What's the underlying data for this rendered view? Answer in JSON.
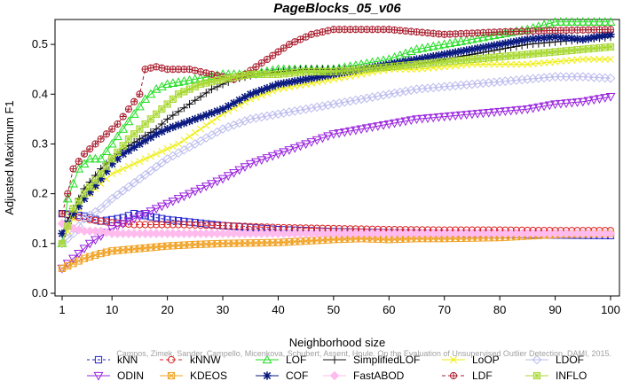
{
  "chart_data": {
    "type": "line",
    "title": "PageBlocks_05_v06",
    "xlabel": "Neighborhood size",
    "ylabel": "Adjusted Maximum F1",
    "xlim": [
      1,
      100
    ],
    "ylim": [
      0,
      0.55
    ],
    "x_ticks": [
      "1",
      "10",
      "20",
      "30",
      "40",
      "50",
      "60",
      "70",
      "80",
      "90",
      "100"
    ],
    "y_ticks": [
      "0.0",
      "0.1",
      "0.2",
      "0.3",
      "0.4",
      "0.5"
    ],
    "grid": false,
    "legend_position": "bottom",
    "watermark": "Campos, Zimek, Sander, Campello, Micenkova, Schubert, Assent, Houle. On the Evaluation of Unsupervised Outlier Detection. DAMI, 2015.",
    "series": [
      {
        "name": "kNN",
        "color": "#2222cc",
        "marker": "square",
        "dash": "3,3",
        "points": [
          [
            1,
            0.16
          ],
          [
            3,
            0.158
          ],
          [
            5,
            0.155
          ],
          [
            8,
            0.145
          ],
          [
            10,
            0.148
          ],
          [
            12,
            0.152
          ],
          [
            14,
            0.16
          ],
          [
            16,
            0.156
          ],
          [
            18,
            0.152
          ],
          [
            20,
            0.148
          ],
          [
            25,
            0.142
          ],
          [
            30,
            0.136
          ],
          [
            40,
            0.128
          ],
          [
            50,
            0.124
          ],
          [
            60,
            0.122
          ],
          [
            70,
            0.12
          ],
          [
            80,
            0.118
          ],
          [
            90,
            0.117
          ],
          [
            100,
            0.116
          ]
        ]
      },
      {
        "name": "kNNW",
        "color": "#dd2222",
        "marker": "circle",
        "dash": "4,3",
        "points": [
          [
            1,
            0.16
          ],
          [
            3,
            0.155
          ],
          [
            6,
            0.148
          ],
          [
            10,
            0.142
          ],
          [
            14,
            0.138
          ],
          [
            18,
            0.138
          ],
          [
            22,
            0.138
          ],
          [
            30,
            0.136
          ],
          [
            40,
            0.132
          ],
          [
            50,
            0.13
          ],
          [
            60,
            0.128
          ],
          [
            70,
            0.127
          ],
          [
            80,
            0.127
          ],
          [
            90,
            0.126
          ],
          [
            100,
            0.126
          ]
        ]
      },
      {
        "name": "LOF",
        "color": "#22dd22",
        "marker": "triangle",
        "dash": "",
        "points": [
          [
            1,
            0.1
          ],
          [
            2,
            0.19
          ],
          [
            4,
            0.25
          ],
          [
            6,
            0.27
          ],
          [
            8,
            0.27
          ],
          [
            10,
            0.3
          ],
          [
            12,
            0.33
          ],
          [
            14,
            0.36
          ],
          [
            16,
            0.39
          ],
          [
            18,
            0.41
          ],
          [
            20,
            0.42
          ],
          [
            25,
            0.43
          ],
          [
            30,
            0.44
          ],
          [
            35,
            0.44
          ],
          [
            40,
            0.45
          ],
          [
            45,
            0.45
          ],
          [
            50,
            0.45
          ],
          [
            55,
            0.46
          ],
          [
            60,
            0.47
          ],
          [
            65,
            0.49
          ],
          [
            70,
            0.5
          ],
          [
            75,
            0.51
          ],
          [
            80,
            0.52
          ],
          [
            85,
            0.53
          ],
          [
            90,
            0.545
          ],
          [
            95,
            0.545
          ],
          [
            100,
            0.545
          ]
        ]
      },
      {
        "name": "SimplifiedLOF",
        "color": "#111111",
        "marker": "plus",
        "dash": "",
        "points": [
          [
            1,
            0.12
          ],
          [
            3,
            0.17
          ],
          [
            5,
            0.21
          ],
          [
            8,
            0.25
          ],
          [
            10,
            0.27
          ],
          [
            12,
            0.29
          ],
          [
            15,
            0.31
          ],
          [
            18,
            0.33
          ],
          [
            20,
            0.35
          ],
          [
            24,
            0.38
          ],
          [
            28,
            0.41
          ],
          [
            32,
            0.43
          ],
          [
            36,
            0.44
          ],
          [
            40,
            0.445
          ],
          [
            45,
            0.45
          ],
          [
            50,
            0.45
          ],
          [
            55,
            0.45
          ],
          [
            60,
            0.455
          ],
          [
            65,
            0.46
          ],
          [
            70,
            0.47
          ],
          [
            75,
            0.48
          ],
          [
            80,
            0.49
          ],
          [
            85,
            0.5
          ],
          [
            90,
            0.505
          ],
          [
            95,
            0.51
          ],
          [
            100,
            0.515
          ]
        ]
      },
      {
        "name": "LoOP",
        "color": "#eeee11",
        "marker": "cross",
        "dash": "",
        "points": [
          [
            1,
            0.1
          ],
          [
            3,
            0.15
          ],
          [
            5,
            0.19
          ],
          [
            8,
            0.22
          ],
          [
            10,
            0.24
          ],
          [
            14,
            0.26
          ],
          [
            18,
            0.28
          ],
          [
            22,
            0.3
          ],
          [
            26,
            0.33
          ],
          [
            30,
            0.36
          ],
          [
            35,
            0.39
          ],
          [
            40,
            0.41
          ],
          [
            45,
            0.42
          ],
          [
            50,
            0.43
          ],
          [
            55,
            0.44
          ],
          [
            60,
            0.45
          ],
          [
            65,
            0.45
          ],
          [
            70,
            0.455
          ],
          [
            75,
            0.46
          ],
          [
            80,
            0.46
          ],
          [
            85,
            0.46
          ],
          [
            90,
            0.465
          ],
          [
            95,
            0.47
          ],
          [
            100,
            0.47
          ]
        ]
      },
      {
        "name": "LDOF",
        "color": "#bbbbee",
        "marker": "diamond",
        "dash": "",
        "points": [
          [
            1,
            0.1
          ],
          [
            3,
            0.12
          ],
          [
            5,
            0.15
          ],
          [
            8,
            0.17
          ],
          [
            10,
            0.19
          ],
          [
            15,
            0.23
          ],
          [
            20,
            0.27
          ],
          [
            25,
            0.3
          ],
          [
            30,
            0.33
          ],
          [
            35,
            0.35
          ],
          [
            40,
            0.36
          ],
          [
            45,
            0.37
          ],
          [
            50,
            0.38
          ],
          [
            55,
            0.39
          ],
          [
            60,
            0.4
          ],
          [
            65,
            0.41
          ],
          [
            70,
            0.415
          ],
          [
            75,
            0.42
          ],
          [
            80,
            0.425
          ],
          [
            85,
            0.43
          ],
          [
            90,
            0.435
          ],
          [
            95,
            0.435
          ],
          [
            100,
            0.432
          ]
        ]
      },
      {
        "name": "ODIN",
        "color": "#9922dd",
        "marker": "triangle-down",
        "dash": "",
        "points": [
          [
            1,
            0.05
          ],
          [
            3,
            0.07
          ],
          [
            6,
            0.1
          ],
          [
            10,
            0.13
          ],
          [
            14,
            0.15
          ],
          [
            18,
            0.17
          ],
          [
            22,
            0.19
          ],
          [
            26,
            0.21
          ],
          [
            30,
            0.23
          ],
          [
            35,
            0.26
          ],
          [
            40,
            0.28
          ],
          [
            45,
            0.3
          ],
          [
            50,
            0.32
          ],
          [
            55,
            0.33
          ],
          [
            60,
            0.34
          ],
          [
            65,
            0.35
          ],
          [
            70,
            0.355
          ],
          [
            75,
            0.36
          ],
          [
            80,
            0.365
          ],
          [
            85,
            0.37
          ],
          [
            90,
            0.38
          ],
          [
            95,
            0.385
          ],
          [
            100,
            0.395
          ]
        ]
      },
      {
        "name": "KDEOS",
        "color": "#f0a020",
        "marker": "square-x",
        "dash": "",
        "points": [
          [
            1,
            0.05
          ],
          [
            3,
            0.06
          ],
          [
            5,
            0.07
          ],
          [
            8,
            0.08
          ],
          [
            10,
            0.085
          ],
          [
            15,
            0.09
          ],
          [
            20,
            0.095
          ],
          [
            25,
            0.098
          ],
          [
            30,
            0.1
          ],
          [
            40,
            0.102
          ],
          [
            50,
            0.108
          ],
          [
            55,
            0.11
          ],
          [
            60,
            0.108
          ],
          [
            65,
            0.11
          ],
          [
            70,
            0.11
          ],
          [
            80,
            0.112
          ],
          [
            90,
            0.118
          ],
          [
            100,
            0.12
          ]
        ]
      },
      {
        "name": "COF",
        "color": "#0a1a80",
        "marker": "star",
        "dash": "",
        "points": [
          [
            1,
            0.12
          ],
          [
            3,
            0.16
          ],
          [
            5,
            0.19
          ],
          [
            8,
            0.23
          ],
          [
            10,
            0.26
          ],
          [
            12,
            0.28
          ],
          [
            15,
            0.3
          ],
          [
            18,
            0.32
          ],
          [
            20,
            0.33
          ],
          [
            25,
            0.35
          ],
          [
            30,
            0.37
          ],
          [
            35,
            0.4
          ],
          [
            40,
            0.42
          ],
          [
            45,
            0.43
          ],
          [
            50,
            0.44
          ],
          [
            55,
            0.45
          ],
          [
            60,
            0.46
          ],
          [
            65,
            0.47
          ],
          [
            70,
            0.48
          ],
          [
            75,
            0.49
          ],
          [
            80,
            0.5
          ],
          [
            85,
            0.51
          ],
          [
            90,
            0.515
          ],
          [
            95,
            0.51
          ],
          [
            100,
            0.52
          ]
        ]
      },
      {
        "name": "FastABOD",
        "color": "#ffbbee",
        "marker": "diamond-filled",
        "dash": "",
        "points": [
          [
            1,
            0.14
          ],
          [
            3,
            0.13
          ],
          [
            5,
            0.125
          ],
          [
            8,
            0.125
          ],
          [
            10,
            0.12
          ],
          [
            20,
            0.12
          ],
          [
            30,
            0.12
          ],
          [
            40,
            0.12
          ],
          [
            50,
            0.12
          ],
          [
            60,
            0.12
          ],
          [
            70,
            0.12
          ],
          [
            80,
            0.12
          ],
          [
            90,
            0.12
          ],
          [
            100,
            0.12
          ]
        ]
      },
      {
        "name": "LDF",
        "color": "#aa1e2e",
        "marker": "circle-plus",
        "dash": "4,3",
        "points": [
          [
            1,
            0.16
          ],
          [
            2,
            0.2
          ],
          [
            3,
            0.25
          ],
          [
            5,
            0.28
          ],
          [
            7,
            0.3
          ],
          [
            9,
            0.32
          ],
          [
            11,
            0.34
          ],
          [
            13,
            0.37
          ],
          [
            15,
            0.4
          ],
          [
            16,
            0.45
          ],
          [
            18,
            0.455
          ],
          [
            20,
            0.45
          ],
          [
            24,
            0.45
          ],
          [
            28,
            0.44
          ],
          [
            32,
            0.43
          ],
          [
            34,
            0.44
          ],
          [
            38,
            0.47
          ],
          [
            42,
            0.5
          ],
          [
            46,
            0.52
          ],
          [
            50,
            0.53
          ],
          [
            55,
            0.53
          ],
          [
            60,
            0.53
          ],
          [
            70,
            0.52
          ],
          [
            80,
            0.525
          ],
          [
            90,
            0.528
          ],
          [
            100,
            0.53
          ]
        ]
      },
      {
        "name": "INFLO",
        "color": "#a8d830",
        "marker": "square-star",
        "dash": "",
        "points": [
          [
            1,
            0.1
          ],
          [
            3,
            0.17
          ],
          [
            5,
            0.2
          ],
          [
            8,
            0.24
          ],
          [
            10,
            0.27
          ],
          [
            13,
            0.31
          ],
          [
            16,
            0.34
          ],
          [
            19,
            0.37
          ],
          [
            22,
            0.4
          ],
          [
            26,
            0.42
          ],
          [
            30,
            0.43
          ],
          [
            35,
            0.44
          ],
          [
            40,
            0.44
          ],
          [
            45,
            0.445
          ],
          [
            50,
            0.445
          ],
          [
            55,
            0.45
          ],
          [
            60,
            0.455
          ],
          [
            65,
            0.46
          ],
          [
            70,
            0.465
          ],
          [
            75,
            0.47
          ],
          [
            80,
            0.475
          ],
          [
            85,
            0.48
          ],
          [
            90,
            0.485
          ],
          [
            95,
            0.49
          ],
          [
            100,
            0.495
          ]
        ]
      }
    ]
  },
  "legend": {
    "rows": [
      [
        "kNN",
        "kNNW",
        "LOF",
        "SimplifiedLOF",
        "LoOP",
        "LDOF"
      ],
      [
        "ODIN",
        "KDEOS",
        "COF",
        "FastABOD",
        "LDF",
        "INFLO"
      ]
    ]
  }
}
